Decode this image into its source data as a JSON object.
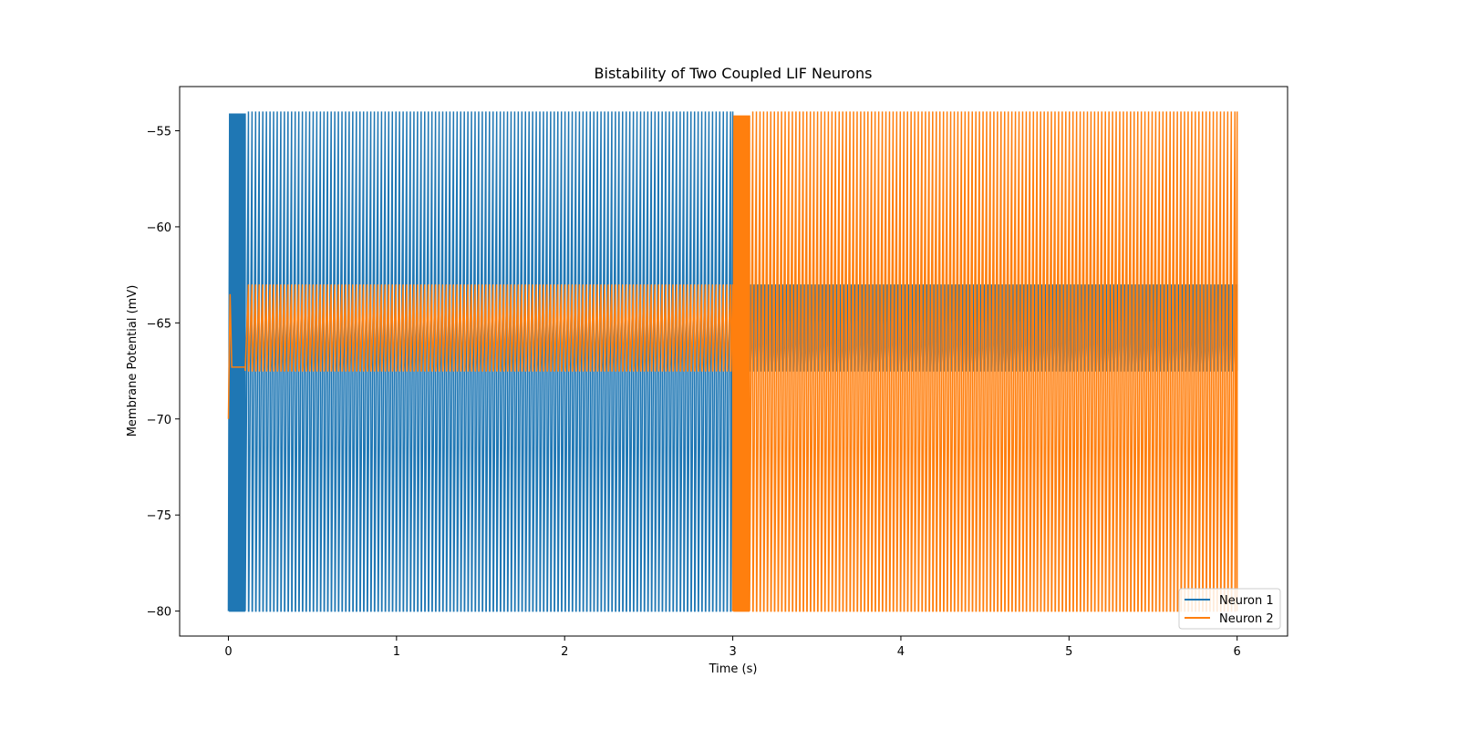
{
  "chart_data": {
    "type": "line",
    "title": "Bistability of Two Coupled LIF Neurons",
    "xlabel": "Time (s)",
    "ylabel": "Membrane Potential (mV)",
    "xlim": [
      -0.29,
      6.3
    ],
    "ylim": [
      -81.3,
      -52.7
    ],
    "xticks": [
      0,
      1,
      2,
      3,
      4,
      5,
      6
    ],
    "xtick_labels": [
      "0",
      "1",
      "2",
      "3",
      "4",
      "5",
      "6"
    ],
    "yticks": [
      -55,
      -60,
      -65,
      -70,
      -75,
      -80
    ],
    "ytick_labels": [
      "−55",
      "−60",
      "−65",
      "−70",
      "−75",
      "−80"
    ],
    "grid": false,
    "legend_position": "lower-right",
    "series": [
      {
        "name": "Neuron 1",
        "color": "#1f77b4",
        "regimes": [
          {
            "t_start": 0.0,
            "t_end": 0.1,
            "v_min": -80.0,
            "v_max": -54.1,
            "period": 0.008,
            "note_state": "burst"
          },
          {
            "t_start": 0.1,
            "t_end": 3.0,
            "v_min": -80.0,
            "v_max": -54.0,
            "period": 0.0214
          },
          {
            "t_start": 3.0,
            "t_end": 6.0,
            "v_min": -67.5,
            "v_max": -63.0,
            "period": 0.0214
          }
        ]
      },
      {
        "name": "Neuron 2",
        "color": "#ff7f0e",
        "regimes": [
          {
            "t_start": 0.0,
            "t_end": 0.1,
            "v_min": -70.0,
            "v_max": -63.5,
            "period": 0.0,
            "settle": -67.3
          },
          {
            "t_start": 0.1,
            "t_end": 3.0,
            "v_min": -67.5,
            "v_max": -63.0,
            "period": 0.0214
          },
          {
            "t_start": 3.0,
            "t_end": 3.1,
            "v_min": -80.0,
            "v_max": -54.2,
            "period": 0.008
          },
          {
            "t_start": 3.1,
            "t_end": 6.0,
            "v_min": -80.0,
            "v_max": -54.0,
            "period": 0.0214
          }
        ]
      }
    ]
  }
}
